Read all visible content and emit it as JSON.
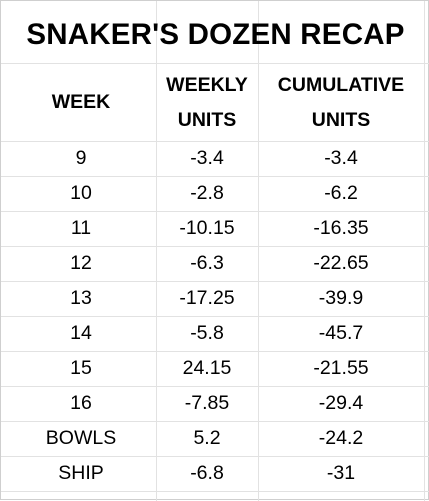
{
  "title": "SNAKER'S DOZEN RECAP",
  "headers": {
    "week": "WEEK",
    "weekly_line1": "WEEKLY",
    "weekly_line2": "UNITS",
    "cumulative_line1": "CUMULATIVE",
    "cumulative_line2": "UNITS"
  },
  "rows": [
    {
      "week": "9",
      "weekly": "-3.4",
      "cumulative": "-3.4"
    },
    {
      "week": "10",
      "weekly": "-2.8",
      "cumulative": "-6.2"
    },
    {
      "week": "11",
      "weekly": "-10.15",
      "cumulative": "-16.35"
    },
    {
      "week": "12",
      "weekly": "-6.3",
      "cumulative": "-22.65"
    },
    {
      "week": "13",
      "weekly": "-17.25",
      "cumulative": "-39.9"
    },
    {
      "week": "14",
      "weekly": "-5.8",
      "cumulative": "-45.7"
    },
    {
      "week": "15",
      "weekly": "24.15",
      "cumulative": "-21.55"
    },
    {
      "week": "16",
      "weekly": "-7.85",
      "cumulative": "-29.4"
    },
    {
      "week": "BOWLS",
      "weekly": "5.2",
      "cumulative": "-24.2"
    },
    {
      "week": "SHIP",
      "weekly": "-6.8",
      "cumulative": "-31"
    }
  ]
}
